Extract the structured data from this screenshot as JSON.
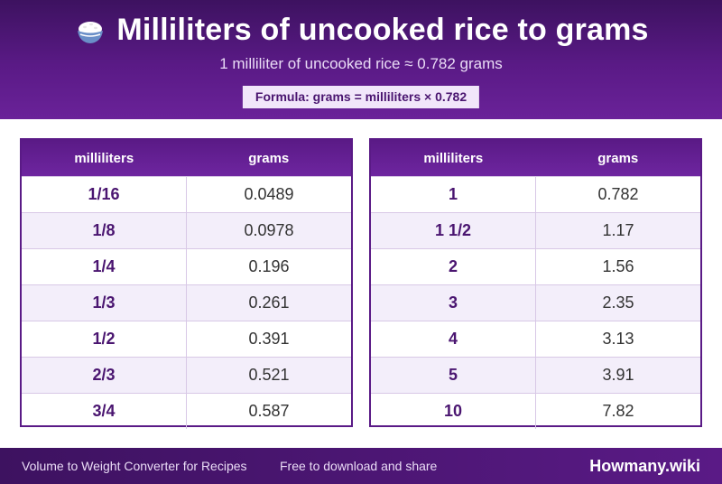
{
  "header": {
    "title": "Milliliters of uncooked rice to grams",
    "subtitle": "1 milliliter of uncooked rice ≈ 0.782 grams",
    "formula": "Formula: grams = milliliters × 0.782",
    "icon": "rice-bowl-icon"
  },
  "tables": {
    "left": {
      "headers": [
        "milliliters",
        "grams"
      ],
      "rows": [
        {
          "ml": "1/16",
          "g": "0.0489"
        },
        {
          "ml": "1/8",
          "g": "0.0978"
        },
        {
          "ml": "1/4",
          "g": "0.196"
        },
        {
          "ml": "1/3",
          "g": "0.261"
        },
        {
          "ml": "1/2",
          "g": "0.391"
        },
        {
          "ml": "2/3",
          "g": "0.521"
        },
        {
          "ml": "3/4",
          "g": "0.587"
        }
      ]
    },
    "right": {
      "headers": [
        "milliliters",
        "grams"
      ],
      "rows": [
        {
          "ml": "1",
          "g": "0.782"
        },
        {
          "ml": "1 1/2",
          "g": "1.17"
        },
        {
          "ml": "2",
          "g": "1.56"
        },
        {
          "ml": "3",
          "g": "2.35"
        },
        {
          "ml": "4",
          "g": "3.13"
        },
        {
          "ml": "5",
          "g": "3.91"
        },
        {
          "ml": "10",
          "g": "7.82"
        }
      ]
    }
  },
  "footer": {
    "left_text": "Volume to Weight Converter for Recipes",
    "mid_text": "Free to download and share",
    "brand": "Howmany.wiki"
  },
  "colors": {
    "primary": "#5a1a86",
    "dark": "#3d1260",
    "accent_text": "#4a1570",
    "row_alt": "#f3eefa"
  }
}
